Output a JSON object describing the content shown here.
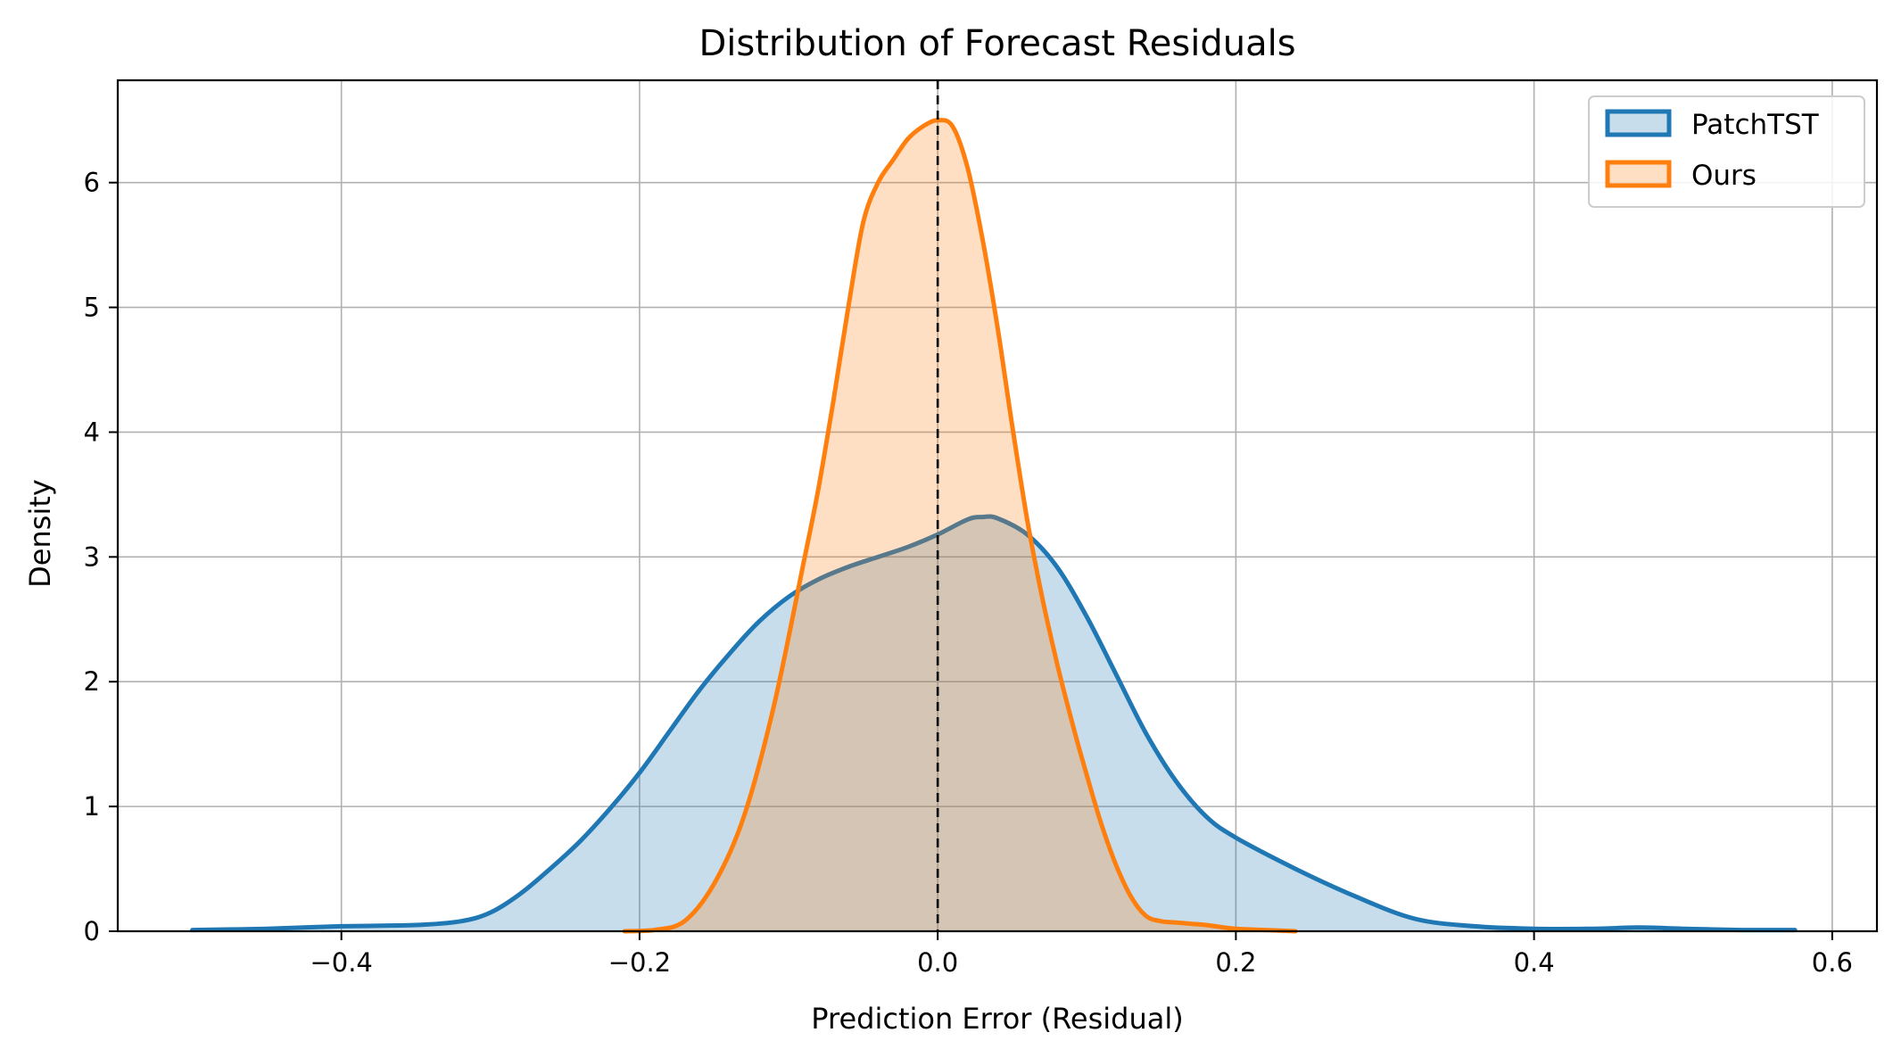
{
  "chart_data": {
    "type": "area",
    "title": "Distribution of Forecast Residuals",
    "xlabel": "Prediction Error (Residual)",
    "ylabel": "Density",
    "xlim": [
      -0.55,
      0.63
    ],
    "ylim": [
      0,
      6.82
    ],
    "xticks": [
      -0.4,
      -0.2,
      0.0,
      0.2,
      0.4,
      0.6
    ],
    "xtick_labels": [
      "−0.4",
      "−0.2",
      "0.0",
      "0.2",
      "0.4",
      "0.6"
    ],
    "yticks": [
      0,
      1,
      2,
      3,
      4,
      5,
      6
    ],
    "ytick_labels": [
      "0",
      "1",
      "2",
      "3",
      "4",
      "5",
      "6"
    ],
    "grid": true,
    "legend_position": "top-right",
    "reference_line_x": 0.0,
    "series": [
      {
        "name": "PatchTST",
        "color": "#1f77b4",
        "fill": "#1f77b4",
        "x": [
          -0.5,
          -0.45,
          -0.4,
          -0.35,
          -0.32,
          -0.3,
          -0.28,
          -0.26,
          -0.24,
          -0.22,
          -0.2,
          -0.18,
          -0.16,
          -0.14,
          -0.12,
          -0.1,
          -0.08,
          -0.06,
          -0.04,
          -0.02,
          0.0,
          0.02,
          0.03,
          0.04,
          0.06,
          0.08,
          0.1,
          0.12,
          0.14,
          0.16,
          0.18,
          0.2,
          0.24,
          0.28,
          0.32,
          0.36,
          0.4,
          0.44,
          0.47,
          0.5,
          0.54,
          0.575
        ],
        "values": [
          0.01,
          0.02,
          0.04,
          0.05,
          0.08,
          0.15,
          0.3,
          0.5,
          0.72,
          0.98,
          1.27,
          1.6,
          1.93,
          2.22,
          2.48,
          2.68,
          2.82,
          2.92,
          3.0,
          3.08,
          3.18,
          3.3,
          3.32,
          3.31,
          3.18,
          2.92,
          2.52,
          2.05,
          1.58,
          1.2,
          0.92,
          0.75,
          0.5,
          0.28,
          0.1,
          0.04,
          0.02,
          0.02,
          0.03,
          0.02,
          0.01,
          0.01
        ]
      },
      {
        "name": "Ours",
        "color": "#ff7f0e",
        "fill": "#ff7f0e",
        "x": [
          -0.21,
          -0.19,
          -0.17,
          -0.15,
          -0.13,
          -0.11,
          -0.09,
          -0.08,
          -0.07,
          -0.06,
          -0.05,
          -0.04,
          -0.03,
          -0.02,
          -0.01,
          0.0,
          0.01,
          0.02,
          0.03,
          0.04,
          0.05,
          0.06,
          0.07,
          0.08,
          0.09,
          0.1,
          0.11,
          0.12,
          0.13,
          0.14,
          0.15,
          0.16,
          0.17,
          0.18,
          0.2,
          0.22,
          0.24
        ],
        "values": [
          0.0,
          0.01,
          0.08,
          0.38,
          0.92,
          1.8,
          2.95,
          3.55,
          4.25,
          5.0,
          5.68,
          6.0,
          6.18,
          6.35,
          6.45,
          6.5,
          6.45,
          6.12,
          5.55,
          4.85,
          4.05,
          3.3,
          2.68,
          2.15,
          1.68,
          1.25,
          0.85,
          0.52,
          0.27,
          0.12,
          0.08,
          0.07,
          0.06,
          0.05,
          0.02,
          0.01,
          0.0
        ]
      }
    ]
  }
}
